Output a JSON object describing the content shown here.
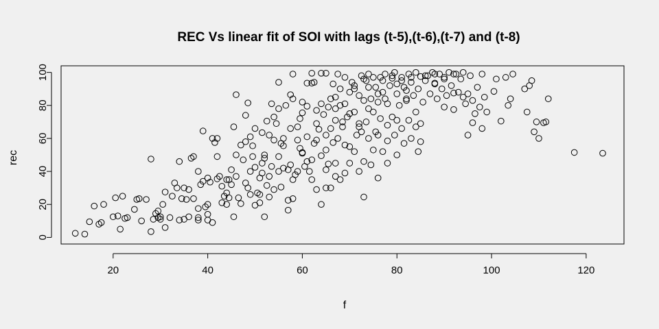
{
  "chart_data": {
    "type": "scatter",
    "title": "REC Vs linear fit of SOI with lags (t-5),(t-6),(t-7) and (t-8)",
    "xlabel": "f",
    "ylabel": "rec",
    "xlim": [
      9,
      128
    ],
    "ylim": [
      -4,
      104
    ],
    "xticks": [
      20,
      40,
      60,
      80,
      100,
      120
    ],
    "yticks": [
      0,
      20,
      40,
      60,
      80,
      100
    ],
    "grid": false,
    "legend": "none",
    "background_color": "#f0f0f0",
    "point_color": "#000000",
    "points": [
      [
        12.0,
        2.5
      ],
      [
        14.0,
        2.0
      ],
      [
        15.0,
        9.5
      ],
      [
        16.0,
        19.0
      ],
      [
        17.0,
        8.0
      ],
      [
        17.5,
        9.0
      ],
      [
        18.0,
        20.0
      ],
      [
        20.0,
        12.5
      ],
      [
        20.5,
        24.0
      ],
      [
        21.0,
        13.0
      ],
      [
        21.5,
        5.0
      ],
      [
        22.0,
        25.0
      ],
      [
        22.5,
        11.5
      ],
      [
        23.0,
        12.0
      ],
      [
        24.5,
        17.0
      ],
      [
        25.0,
        23.0
      ],
      [
        25.5,
        23.5
      ],
      [
        26.0,
        10.0
      ],
      [
        27.0,
        23.0
      ],
      [
        28.0,
        47.5
      ],
      [
        28.0,
        3.5
      ],
      [
        28.5,
        11.0
      ],
      [
        29.0,
        14.5
      ],
      [
        29.5,
        16.0
      ],
      [
        29.5,
        12.0
      ],
      [
        30.0,
        11.0
      ],
      [
        30.0,
        12.5
      ],
      [
        30.5,
        20.0
      ],
      [
        31.0,
        27.5
      ],
      [
        31.0,
        6.0
      ],
      [
        32.0,
        12.0
      ],
      [
        32.5,
        25.0
      ],
      [
        33.0,
        33.0
      ],
      [
        33.5,
        30.0
      ],
      [
        34.0,
        10.5
      ],
      [
        34.0,
        46.0
      ],
      [
        34.5,
        23.5
      ],
      [
        35.0,
        30.0
      ],
      [
        35.0,
        11.0
      ],
      [
        35.5,
        23.0
      ],
      [
        36.0,
        29.0
      ],
      [
        36.0,
        12.5
      ],
      [
        36.5,
        48.0
      ],
      [
        37.0,
        49.0
      ],
      [
        37.0,
        23.5
      ],
      [
        38.0,
        12.0
      ],
      [
        38.0,
        10.5
      ],
      [
        38.0,
        40.0
      ],
      [
        38.5,
        32.0
      ],
      [
        39.0,
        34.0
      ],
      [
        39.0,
        64.5
      ],
      [
        39.5,
        18.5
      ],
      [
        40.0,
        20.0
      ],
      [
        40.0,
        10.5
      ],
      [
        40.0,
        14.0
      ],
      [
        40.5,
        33.5
      ],
      [
        41.0,
        60.0
      ],
      [
        41.0,
        9.0
      ],
      [
        41.5,
        57.5
      ],
      [
        42.0,
        60.0
      ],
      [
        42.0,
        35.5
      ],
      [
        42.5,
        37.0
      ],
      [
        43.0,
        21.0
      ],
      [
        43.5,
        25.0
      ],
      [
        44.0,
        35.0
      ],
      [
        44.0,
        20.0
      ],
      [
        44.5,
        24.0
      ],
      [
        44.5,
        35.0
      ],
      [
        45.0,
        41.0
      ],
      [
        45.5,
        67.0
      ],
      [
        45.5,
        12.5
      ],
      [
        46.0,
        86.5
      ],
      [
        46.0,
        50.0
      ],
      [
        46.5,
        24.0
      ],
      [
        47.0,
        56.0
      ],
      [
        47.5,
        47.0
      ],
      [
        48.0,
        74.0
      ],
      [
        48.0,
        33.0
      ],
      [
        48.5,
        81.5
      ],
      [
        48.5,
        30.0
      ],
      [
        49.0,
        61.0
      ],
      [
        49.0,
        40.0
      ],
      [
        49.5,
        55.5
      ],
      [
        50.0,
        66.0
      ],
      [
        50.0,
        19.5
      ],
      [
        50.5,
        27.0
      ],
      [
        51.0,
        26.0
      ],
      [
        51.0,
        21.0
      ],
      [
        51.5,
        63.5
      ],
      [
        51.5,
        39.0
      ],
      [
        52.0,
        12.5
      ],
      [
        52.0,
        50.0
      ],
      [
        52.5,
        70.5
      ],
      [
        52.5,
        31.5
      ],
      [
        53.0,
        62.0
      ],
      [
        53.0,
        24.5
      ],
      [
        53.5,
        43.0
      ],
      [
        54.0,
        59.0
      ],
      [
        54.0,
        29.0
      ],
      [
        54.5,
        69.0
      ],
      [
        55.0,
        94.0
      ],
      [
        55.0,
        78.0
      ],
      [
        55.0,
        40.0
      ],
      [
        55.5,
        30.5
      ],
      [
        56.0,
        55.5
      ],
      [
        56.0,
        42.0
      ],
      [
        56.5,
        80.0
      ],
      [
        57.0,
        41.0
      ],
      [
        57.0,
        22.5
      ],
      [
        57.5,
        86.5
      ],
      [
        57.5,
        44.0
      ],
      [
        58.0,
        84.0
      ],
      [
        58.0,
        23.5
      ],
      [
        58.5,
        38.0
      ],
      [
        59.0,
        40.0
      ],
      [
        59.0,
        59.0
      ],
      [
        59.5,
        54.0
      ],
      [
        60.0,
        82.0
      ],
      [
        60.0,
        51.0
      ],
      [
        60.5,
        43.0
      ],
      [
        61.0,
        93.5
      ],
      [
        61.0,
        79.5
      ],
      [
        61.5,
        40.0
      ],
      [
        62.0,
        93.5
      ],
      [
        62.0,
        35.0
      ],
      [
        62.5,
        94.0
      ],
      [
        62.5,
        57.0
      ],
      [
        63.0,
        69.0
      ],
      [
        63.0,
        29.0
      ],
      [
        63.5,
        65.5
      ],
      [
        64.0,
        81.0
      ],
      [
        64.0,
        49.5
      ],
      [
        64.5,
        74.5
      ],
      [
        65.0,
        30.0
      ],
      [
        65.5,
        79.0
      ],
      [
        65.5,
        44.5
      ],
      [
        66.0,
        66.0
      ],
      [
        66.0,
        30.0
      ],
      [
        66.5,
        57.5
      ],
      [
        67.0,
        78.0
      ],
      [
        67.0,
        45.0
      ],
      [
        67.5,
        99.0
      ],
      [
        67.5,
        60.0
      ],
      [
        68.0,
        80.0
      ],
      [
        68.0,
        35.0
      ],
      [
        68.5,
        67.0
      ],
      [
        69.0,
        81.0
      ],
      [
        69.0,
        39.0
      ],
      [
        69.5,
        73.0
      ],
      [
        70.0,
        88.0
      ],
      [
        70.0,
        55.0
      ],
      [
        70.5,
        94.0
      ],
      [
        71.0,
        76.0
      ],
      [
        71.0,
        52.0
      ],
      [
        71.5,
        62.0
      ],
      [
        72.0,
        86.0
      ],
      [
        72.0,
        40.0
      ],
      [
        72.5,
        98.0
      ],
      [
        72.5,
        64.0
      ],
      [
        73.0,
        83.0
      ],
      [
        73.0,
        46.0
      ],
      [
        73.5,
        95.0
      ],
      [
        73.5,
        70.0
      ],
      [
        74.0,
        99.0
      ],
      [
        74.0,
        60.0
      ],
      [
        74.5,
        84.0
      ],
      [
        74.5,
        44.0
      ],
      [
        75.0,
        76.0
      ],
      [
        75.0,
        53.0
      ],
      [
        75.5,
        91.0
      ],
      [
        75.5,
        64.0
      ],
      [
        76.0,
        82.0
      ],
      [
        76.0,
        36.0
      ],
      [
        76.5,
        97.0
      ],
      [
        76.5,
        72.0
      ],
      [
        77.0,
        88.0
      ],
      [
        77.0,
        52.0
      ],
      [
        77.5,
        99.0
      ],
      [
        77.5,
        84.0
      ],
      [
        78.0,
        68.0
      ],
      [
        78.0,
        45.0
      ],
      [
        78.5,
        92.0
      ],
      [
        79.0,
        96.5
      ],
      [
        79.0,
        73.0
      ],
      [
        79.5,
        100.0
      ],
      [
        79.5,
        62.0
      ],
      [
        80.0,
        87.0
      ],
      [
        80.0,
        50.0
      ],
      [
        80.5,
        80.0
      ],
      [
        81.0,
        97.0
      ],
      [
        81.0,
        66.0
      ],
      [
        81.5,
        91.0
      ],
      [
        81.5,
        57.0
      ],
      [
        82.0,
        84.0
      ],
      [
        82.5,
        99.0
      ],
      [
        82.5,
        71.0
      ],
      [
        83.0,
        94.0
      ],
      [
        83.0,
        60.0
      ],
      [
        83.5,
        86.0
      ],
      [
        84.0,
        100.0
      ],
      [
        84.0,
        76.0
      ],
      [
        84.5,
        90.0
      ],
      [
        84.5,
        52.0
      ],
      [
        85.0,
        97.5
      ],
      [
        85.0,
        69.0
      ],
      [
        85.5,
        82.0
      ],
      [
        86.0,
        95.0
      ],
      [
        86.5,
        98.0
      ],
      [
        87.0,
        87.0
      ],
      [
        87.5,
        100.0
      ],
      [
        88.0,
        93.0
      ],
      [
        88.5,
        84.0
      ],
      [
        89.0,
        99.0
      ],
      [
        89.5,
        90.0
      ],
      [
        90.0,
        97.0
      ],
      [
        90.5,
        86.0
      ],
      [
        91.0,
        100.0
      ],
      [
        91.5,
        92.0
      ],
      [
        92.0,
        77.5
      ],
      [
        92.5,
        99.0
      ],
      [
        93.0,
        88.0
      ],
      [
        93.5,
        96.0
      ],
      [
        94.0,
        100.0
      ],
      [
        94.5,
        81.0
      ],
      [
        95.0,
        62.0
      ],
      [
        95.0,
        87.0
      ],
      [
        95.5,
        98.0
      ],
      [
        96.0,
        83.0
      ],
      [
        96.5,
        75.0
      ],
      [
        97.0,
        91.0
      ],
      [
        97.5,
        79.0
      ],
      [
        98.0,
        66.0
      ],
      [
        98.0,
        99.0
      ],
      [
        98.5,
        85.0
      ],
      [
        99.0,
        76.0
      ],
      [
        100.5,
        88.5
      ],
      [
        101.0,
        96.0
      ],
      [
        102.0,
        70.5
      ],
      [
        103.0,
        97.0
      ],
      [
        103.5,
        80.0
      ],
      [
        104.0,
        84.0
      ],
      [
        104.5,
        99.0
      ],
      [
        107.0,
        90.0
      ],
      [
        107.5,
        76.0
      ],
      [
        108.0,
        92.0
      ],
      [
        108.5,
        95.0
      ],
      [
        109.0,
        64.0
      ],
      [
        109.5,
        70.0
      ],
      [
        110.0,
        60.0
      ],
      [
        111.0,
        69.5
      ],
      [
        111.5,
        70.0
      ],
      [
        112.0,
        84.0
      ],
      [
        117.5,
        51.5
      ],
      [
        123.5,
        51.0
      ],
      [
        58.0,
        99.0
      ],
      [
        60.0,
        75.5
      ],
      [
        62.0,
        99.5
      ],
      [
        64.0,
        99.5
      ],
      [
        65.0,
        99.5
      ],
      [
        66.0,
        84.0
      ],
      [
        69.0,
        97.0
      ],
      [
        71.0,
        92.0
      ],
      [
        73.0,
        96.0
      ],
      [
        75.0,
        97.0
      ],
      [
        77.0,
        95.0
      ],
      [
        79.0,
        98.0
      ],
      [
        81.0,
        95.0
      ],
      [
        83.0,
        97.0
      ],
      [
        86.0,
        98.0
      ],
      [
        88.0,
        99.0
      ],
      [
        90.0,
        96.0
      ],
      [
        92.0,
        99.0
      ],
      [
        67.0,
        71.0
      ],
      [
        68.5,
        70.0
      ],
      [
        65.0,
        62.0
      ],
      [
        67.0,
        85.0
      ],
      [
        71.0,
        90.0
      ],
      [
        73.0,
        24.5
      ],
      [
        64.0,
        20.0
      ],
      [
        57.0,
        16.5
      ],
      [
        53.0,
        37.0
      ],
      [
        47.0,
        20.5
      ],
      [
        43.0,
        31.0
      ],
      [
        38.0,
        17.5
      ],
      [
        45.0,
        32.0
      ],
      [
        49.0,
        26.0
      ],
      [
        51.0,
        36.0
      ],
      [
        55.0,
        49.0
      ],
      [
        59.0,
        67.0
      ],
      [
        61.0,
        46.0
      ],
      [
        63.0,
        77.0
      ],
      [
        65.0,
        53.0
      ],
      [
        67.0,
        37.0
      ],
      [
        69.0,
        56.0
      ],
      [
        70.0,
        45.0
      ],
      [
        72.0,
        69.0
      ],
      [
        74.0,
        78.0
      ],
      [
        76.0,
        87.0
      ],
      [
        78.0,
        58.5
      ],
      [
        80.0,
        93.0
      ],
      [
        82.0,
        89.0
      ],
      [
        84.0,
        67.0
      ],
      [
        88.0,
        93.5
      ],
      [
        90.0,
        79.0
      ],
      [
        92.0,
        87.5
      ],
      [
        94.0,
        85.0
      ],
      [
        96.0,
        69.5
      ],
      [
        56.0,
        60.0
      ],
      [
        58.0,
        35.0
      ],
      [
        60.0,
        51.5
      ],
      [
        62.0,
        47.0
      ],
      [
        54.0,
        73.0
      ],
      [
        52.0,
        48.0
      ],
      [
        50.0,
        42.5
      ],
      [
        48.0,
        58.0
      ],
      [
        46.0,
        37.0
      ],
      [
        44.0,
        27.0
      ],
      [
        42.0,
        49.0
      ],
      [
        40.0,
        36.0
      ],
      [
        61.0,
        61.0
      ],
      [
        63.0,
        59.0
      ],
      [
        65.0,
        41.0
      ],
      [
        59.5,
        72.0
      ],
      [
        57.5,
        66.0
      ],
      [
        55.5,
        57.0
      ],
      [
        53.5,
        81.0
      ],
      [
        51.5,
        45.0
      ],
      [
        49.5,
        49.0
      ],
      [
        66.5,
        93.0
      ],
      [
        68.0,
        90.0
      ],
      [
        70.0,
        75.0
      ],
      [
        72.0,
        67.0
      ],
      [
        74.0,
        91.0
      ],
      [
        76.0,
        62.0
      ],
      [
        78.0,
        81.0
      ],
      [
        80.0,
        71.0
      ],
      [
        82.0,
        83.0
      ],
      [
        85.0,
        58.0
      ]
    ]
  }
}
